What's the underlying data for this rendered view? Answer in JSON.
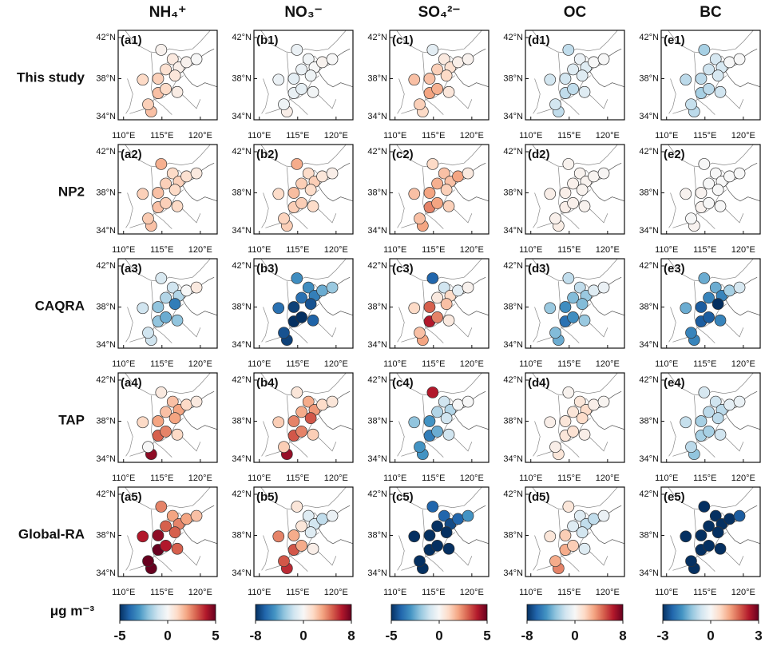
{
  "chart_data": {
    "type": "map",
    "columns": [
      {
        "title": "NH₄⁺",
        "clim": [
          -5,
          5
        ],
        "cticks": [
          -5,
          0,
          5
        ]
      },
      {
        "title": "NO₃⁻",
        "clim": [
          -8,
          8
        ],
        "cticks": [
          -8,
          0,
          8
        ]
      },
      {
        "title": "SO₄²⁻",
        "clim": [
          -5,
          5
        ],
        "cticks": [
          -5,
          0,
          5
        ]
      },
      {
        "title": "OC",
        "clim": [
          -8,
          8
        ],
        "cticks": [
          -8,
          0,
          8
        ]
      },
      {
        "title": "BC",
        "clim": [
          -3,
          3
        ],
        "cticks": [
          -3,
          0,
          3
        ]
      }
    ],
    "rows": [
      {
        "name": "This study",
        "panels": [
          {
            "label": "(a1)",
            "values": [
              0.5,
              0.3,
              1.2,
              0.8,
              0.2,
              0.6,
              1.5,
              1.0,
              1.5,
              0.4,
              1.0,
              1.2,
              0,
              0.2
            ]
          },
          {
            "label": "(b1)",
            "values": [
              -0.3,
              0,
              -0.8,
              -0.5,
              0.3,
              -0.4,
              -0.6,
              -0.5,
              0.5,
              -0.2,
              -0.7,
              -0.4,
              0,
              -0.5
            ]
          },
          {
            "label": "(c1)",
            "values": [
              0.5,
              0.8,
              1.5,
              1.2,
              0.3,
              1.0,
              2.0,
              1.5,
              1.0,
              0.6,
              1.8,
              1.2,
              0.2,
              -0.5
            ]
          },
          {
            "label": "(d1)",
            "values": [
              -0.5,
              -1,
              -1.5,
              -1,
              0,
              -1,
              -2,
              -1.5,
              -2,
              -1,
              -2,
              -1.5,
              0,
              -2
            ]
          },
          {
            "label": "(e1)",
            "values": [
              -0.5,
              -0.5,
              -0.8,
              -0.6,
              0,
              -0.5,
              -1,
              -0.8,
              -0.8,
              -0.6,
              -0.8,
              -0.7,
              0,
              -1
            ]
          }
        ]
      },
      {
        "name": "NP2",
        "panels": [
          {
            "label": "(a2)",
            "values": [
              1,
              1.2,
              1.5,
              1.2,
              0.8,
              1,
              1.5,
              1.2,
              1.5,
              1,
              1.2,
              1.3,
              0.5,
              1.8
            ]
          },
          {
            "label": "(b2)",
            "values": [
              1.5,
              2,
              2.5,
              2,
              1,
              1.5,
              2,
              1.5,
              2,
              1.5,
              2,
              1.8,
              0.5,
              3
            ]
          },
          {
            "label": "(c2)",
            "values": [
              1.5,
              1.5,
              2,
              1.8,
              2,
              1.2,
              2.5,
              1.5,
              2,
              1.2,
              2,
              1.5,
              0.5,
              1
            ]
          },
          {
            "label": "(d2)",
            "values": [
              0.3,
              0.3,
              0.5,
              0.4,
              0.2,
              0.3,
              0.5,
              0.5,
              0.6,
              0.3,
              0.4,
              0.4,
              0.1,
              0.3
            ]
          },
          {
            "label": "(e2)",
            "values": [
              0,
              0,
              0.1,
              0,
              0,
              0,
              0.1,
              0.1,
              0.1,
              0,
              0,
              0,
              0,
              0
            ]
          }
        ]
      },
      {
        "name": "CAQRA",
        "panels": [
          {
            "label": "(a3)",
            "values": [
              -1,
              -1.5,
              -2,
              -1.5,
              0,
              -3.5,
              -2,
              -1,
              -1,
              -2,
              -2.5,
              -1,
              0.5,
              -0.8
            ]
          },
          {
            "label": "(b3)",
            "values": [
              -5,
              -5.5,
              -7.5,
              -6,
              -4,
              -7,
              -8,
              -6,
              -7.5,
              -6.5,
              -8,
              -7,
              -3,
              -5
            ]
          },
          {
            "label": "(c3)",
            "values": [
              -1,
              1,
              3,
              0.5,
              -0.5,
              1.5,
              4,
              1,
              2,
              0.5,
              2.5,
              1.5,
              0.2,
              -4
            ]
          },
          {
            "label": "(d3)",
            "values": [
              -2,
              -3,
              -5,
              -3.5,
              -1,
              -3.5,
              -6,
              -3,
              -4,
              -3,
              -5,
              -3.5,
              -0.5,
              -2
            ]
          },
          {
            "label": "(e3)",
            "values": [
              -1.5,
              -2,
              -2.5,
              -2,
              -1,
              -3,
              -2.5,
              -1.5,
              -2,
              -2,
              -2.5,
              -2,
              -0.5,
              -1.5
            ]
          }
        ]
      },
      {
        "name": "TAP",
        "panels": [
          {
            "label": "(a4)",
            "values": [
              1.5,
              2,
              2,
              1.5,
              1,
              2,
              3,
              1,
              4.5,
              1,
              2.5,
              0,
              0.5,
              0.5
            ]
          },
          {
            "label": "(b4)",
            "values": [
              3,
              3.5,
              4,
              3,
              1.5,
              5,
              5,
              2,
              7,
              2,
              4,
              2,
              1,
              1
            ]
          },
          {
            "label": "(c4)",
            "values": [
              -1,
              -1.5,
              -3,
              -1.5,
              0,
              -1,
              -3.5,
              -2,
              -3,
              -1,
              -2.5,
              -3,
              0,
              4
            ]
          },
          {
            "label": "(d4)",
            "values": [
              1,
              1.5,
              1,
              1,
              0.5,
              1.5,
              1,
              0.5,
              1,
              0.5,
              1.2,
              0.5,
              0.2,
              0.3
            ]
          },
          {
            "label": "(e4)",
            "values": [
              -0.6,
              -0.8,
              -1,
              -0.8,
              -0.3,
              -0.8,
              -1,
              -0.7,
              -1.2,
              -0.6,
              -1,
              -0.8,
              -0.2,
              -0.5
            ]
          }
        ]
      },
      {
        "name": "Global-RA",
        "panels": [
          {
            "label": "(a5)",
            "values": [
              2,
              2.5,
              4.5,
              3,
              2,
              3,
              5,
              4,
              5,
              3,
              4,
              5,
              1.5,
              2.5
            ]
          },
          {
            "label": "(b5)",
            "values": [
              -1,
              -1.5,
              3,
              1,
              -2,
              -1,
              5,
              4,
              6,
              0.5,
              3,
              5,
              -0.5,
              1
            ]
          },
          {
            "label": "(c5)",
            "values": [
              -4,
              -4.5,
              -5,
              -5,
              -4,
              -5,
              -5,
              -5,
              -5,
              -5,
              -5,
              -5,
              -3,
              -4
            ]
          },
          {
            "label": "(d5)",
            "values": [
              -1,
              -2,
              2,
              -1,
              -2,
              -1.5,
              3,
              1,
              4,
              -1,
              2,
              3,
              -0.5,
              1
            ]
          },
          {
            "label": "(e5)",
            "values": [
              -3,
              -3,
              -3,
              -3,
              -3,
              -3,
              -3,
              -3,
              -3,
              -3,
              -3,
              -3,
              -2.5,
              -3
            ]
          }
        ]
      }
    ],
    "stations": {
      "lon": [
        116.4,
        117.2,
        114.5,
        115.5,
        118.2,
        116.7,
        114.5,
        112.5,
        113.6,
        117.0,
        115.5,
        113.2,
        119.5,
        114.9
      ],
      "lat": [
        39.9,
        39.1,
        38.0,
        38.9,
        39.6,
        38.3,
        36.6,
        37.9,
        34.8,
        36.7,
        37.0,
        35.5,
        39.9,
        40.8
      ]
    },
    "xlim": [
      109.3,
      122.2
    ],
    "ylim": [
      34,
      42.7
    ],
    "xticks": [
      {
        "value": 110,
        "label": "110°E"
      },
      {
        "value": 115,
        "label": "115°E"
      },
      {
        "value": 120,
        "label": "120°E"
      }
    ],
    "yticks": [
      {
        "value": 34,
        "label": "34°N"
      },
      {
        "value": 38,
        "label": "38°N"
      },
      {
        "value": 42,
        "label": "42°N"
      }
    ],
    "colorbar_label": "μg m⁻³",
    "colormap": [
      "#053061",
      "#2166ac",
      "#4393c3",
      "#92c5de",
      "#d1e5f0",
      "#f7f7f7",
      "#fddbc7",
      "#f4a582",
      "#d6604d",
      "#b2182b",
      "#67001f"
    ]
  }
}
